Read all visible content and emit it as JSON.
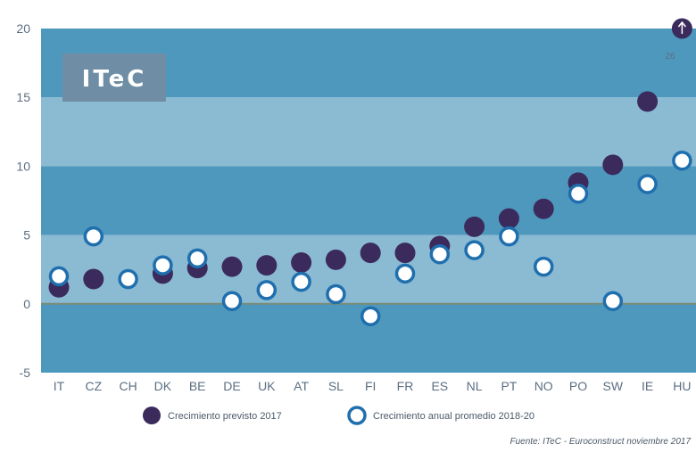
{
  "logo": {
    "text": "ITeC"
  },
  "chart_data": {
    "type": "scatter",
    "categories": [
      "IT",
      "CZ",
      "CH",
      "DK",
      "BE",
      "DE",
      "UK",
      "AT",
      "SL",
      "FI",
      "FR",
      "ES",
      "NL",
      "PT",
      "NO",
      "PO",
      "SW",
      "IE",
      "HU"
    ],
    "series": [
      {
        "name": "Crecimiento previsto 2017",
        "marker": "filled-circle",
        "color": "#3b2a5c",
        "values": [
          1.2,
          1.8,
          null,
          2.2,
          2.6,
          2.7,
          2.8,
          3.0,
          3.2,
          3.7,
          3.7,
          4.2,
          5.6,
          6.2,
          6.9,
          8.8,
          10.1,
          14.7,
          20
        ]
      },
      {
        "name": "Crecimiento anual promedio 2018-20",
        "marker": "open-circle",
        "color": "#1f6fae",
        "values": [
          2.0,
          4.9,
          1.8,
          2.8,
          3.3,
          0.2,
          1.0,
          1.6,
          0.7,
          -0.9,
          2.2,
          3.6,
          3.9,
          4.9,
          2.7,
          8.0,
          0.2,
          8.7,
          10.4
        ]
      }
    ],
    "ylim": [
      -5,
      20
    ],
    "yticks": [
      -5,
      0,
      5,
      10,
      15,
      20
    ],
    "grid": true,
    "legend_position": "bottom",
    "annotation": "26",
    "source": "Fuente: ITeC - Euroconstruct noviembre 2017",
    "colors": {
      "band_dark": "#4e98bd",
      "band_light": "#8bbad3",
      "zero_line": "#7a8c76",
      "logo_box": "#6f8ea5"
    }
  }
}
